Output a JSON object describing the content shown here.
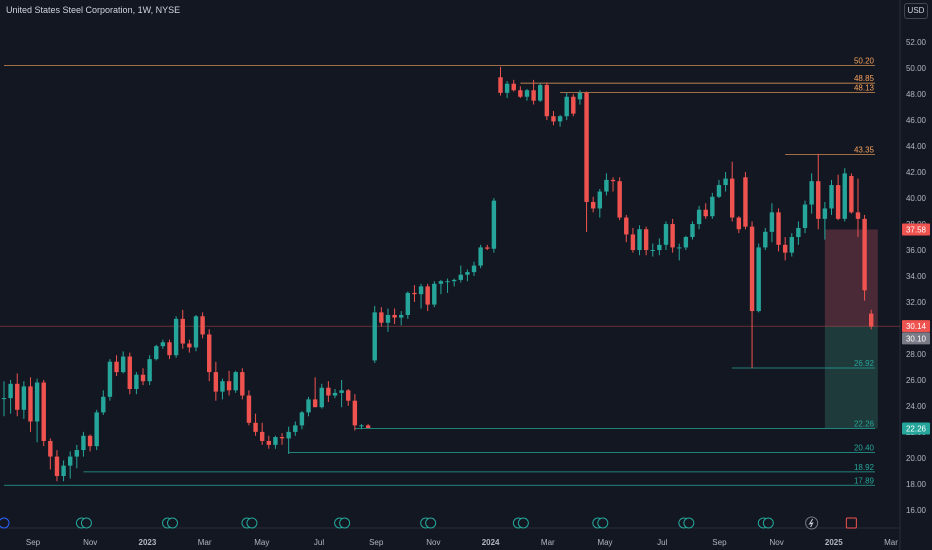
{
  "header": {
    "title": "United States Steel Corporation, 1W, NYSE",
    "currency": "USD"
  },
  "colors": {
    "background": "#131722",
    "bull": "#26a69a",
    "bear": "#ef5350",
    "orange_level": "#f7a35c",
    "green_level": "#26a69a",
    "axis_text": "#b2b5be",
    "stop_zone": "#4a2a36",
    "target_zone": "#1e3a3a"
  },
  "chart_data": {
    "type": "candlestick",
    "title": "United States Steel Corporation, 1W, NYSE",
    "xlabel": "",
    "ylabel": "",
    "ylim": [
      14.6,
      53.4
    ],
    "y_ticks": [
      "52.00",
      "50.00",
      "48.00",
      "46.00",
      "44.00",
      "42.00",
      "40.00",
      "38.00",
      "36.00",
      "34.00",
      "32.00",
      "30.00",
      "28.00",
      "26.00",
      "24.00",
      "22.00",
      "20.00",
      "18.00",
      "16.00"
    ],
    "x_ticks": [
      "Sep",
      "Nov",
      "2023",
      "Mar",
      "May",
      "Jul",
      "Sep",
      "Nov",
      "2024",
      "Mar",
      "May",
      "Jul",
      "Sep",
      "Nov",
      "2025",
      "Mar"
    ],
    "x_range_weeks": [
      0,
      127
    ],
    "candles": [
      [
        24.6,
        25.9,
        23.2,
        24.6
      ],
      [
        24.6,
        26.0,
        23.4,
        25.7
      ],
      [
        25.7,
        26.5,
        23.2,
        23.7
      ],
      [
        23.7,
        25.9,
        23.0,
        25.5
      ],
      [
        25.5,
        26.2,
        22.0,
        22.8
      ],
      [
        22.8,
        26.1,
        21.2,
        25.8
      ],
      [
        25.8,
        26.0,
        20.9,
        21.3
      ],
      [
        21.3,
        21.5,
        19.1,
        20.1
      ],
      [
        20.1,
        20.6,
        18.2,
        18.6
      ],
      [
        18.6,
        19.8,
        18.2,
        19.4
      ],
      [
        19.4,
        20.5,
        18.4,
        20.1
      ],
      [
        20.1,
        21.0,
        19.2,
        20.6
      ],
      [
        20.6,
        22.0,
        20.1,
        21.7
      ],
      [
        21.7,
        21.8,
        20.5,
        20.9
      ],
      [
        20.9,
        23.7,
        20.6,
        23.5
      ],
      [
        23.5,
        25.2,
        23.3,
        24.7
      ],
      [
        24.7,
        27.6,
        24.4,
        27.4
      ],
      [
        27.4,
        27.9,
        26.3,
        26.6
      ],
      [
        26.6,
        28.2,
        26.5,
        27.8
      ],
      [
        27.8,
        28.1,
        24.9,
        25.3
      ],
      [
        25.3,
        26.6,
        24.9,
        26.4
      ],
      [
        26.4,
        26.9,
        25.6,
        25.9
      ],
      [
        25.9,
        27.9,
        25.6,
        27.6
      ],
      [
        27.6,
        28.7,
        27.5,
        28.6
      ],
      [
        28.6,
        29.1,
        28.4,
        28.9
      ],
      [
        28.9,
        29.1,
        27.6,
        27.9
      ],
      [
        27.9,
        30.9,
        27.7,
        30.7
      ],
      [
        30.7,
        31.4,
        28.4,
        28.8
      ],
      [
        28.8,
        29.1,
        28.1,
        28.5
      ],
      [
        28.5,
        31.0,
        28.2,
        30.9
      ],
      [
        30.9,
        31.2,
        29.2,
        29.5
      ],
      [
        29.5,
        29.9,
        25.9,
        26.6
      ],
      [
        26.6,
        27.4,
        24.4,
        25.1
      ],
      [
        25.1,
        26.1,
        24.5,
        25.9
      ],
      [
        25.9,
        26.7,
        24.8,
        25.2
      ],
      [
        25.2,
        26.7,
        25.0,
        26.6
      ],
      [
        26.6,
        26.9,
        24.5,
        24.8
      ],
      [
        24.8,
        25.2,
        22.5,
        22.7
      ],
      [
        22.7,
        23.4,
        21.7,
        22.0
      ],
      [
        22.0,
        22.7,
        21.0,
        21.3
      ],
      [
        21.3,
        21.7,
        20.7,
        21.0
      ],
      [
        21.0,
        21.7,
        20.7,
        21.6
      ],
      [
        21.6,
        21.9,
        21.0,
        21.5
      ],
      [
        21.5,
        22.4,
        20.3,
        22.0
      ],
      [
        22.0,
        22.8,
        21.7,
        22.5
      ],
      [
        22.5,
        23.6,
        22.2,
        23.5
      ],
      [
        23.5,
        24.7,
        23.2,
        24.5
      ],
      [
        24.5,
        26.2,
        23.9,
        23.9
      ],
      [
        23.9,
        25.7,
        23.8,
        25.4
      ],
      [
        25.4,
        25.9,
        24.3,
        24.8
      ],
      [
        24.8,
        25.3,
        24.6,
        25.0
      ],
      [
        25.0,
        26.0,
        23.9,
        25.2
      ],
      [
        25.2,
        25.3,
        24.0,
        24.4
      ],
      [
        24.4,
        24.9,
        22.1,
        22.5
      ],
      [
        22.5,
        22.6,
        22.2,
        22.5
      ],
      [
        22.5,
        22.6,
        22.3,
        22.3
      ],
      [
        27.5,
        31.7,
        27.3,
        31.2
      ],
      [
        31.2,
        31.6,
        30.1,
        30.4
      ],
      [
        30.4,
        31.5,
        29.7,
        31.0
      ],
      [
        31.0,
        31.5,
        30.3,
        30.8
      ],
      [
        30.8,
        31.3,
        30.2,
        31.0
      ],
      [
        31.0,
        32.8,
        30.7,
        32.7
      ],
      [
        32.7,
        33.3,
        32.0,
        32.6
      ],
      [
        32.6,
        33.4,
        31.5,
        33.2
      ],
      [
        33.2,
        33.4,
        31.3,
        31.8
      ],
      [
        31.8,
        33.6,
        31.6,
        33.4
      ],
      [
        33.4,
        33.7,
        32.6,
        33.6
      ],
      [
        33.6,
        33.8,
        32.7,
        33.6
      ],
      [
        33.6,
        33.8,
        33.2,
        33.7
      ],
      [
        33.7,
        34.8,
        33.5,
        34.1
      ],
      [
        34.1,
        34.5,
        33.6,
        34.3
      ],
      [
        34.3,
        35.1,
        34.0,
        34.8
      ],
      [
        34.8,
        36.4,
        34.6,
        36.2
      ],
      [
        36.2,
        36.4,
        36.0,
        36.1
      ],
      [
        36.1,
        40.0,
        35.8,
        39.8
      ],
      [
        49.3,
        50.1,
        47.9,
        48.1
      ],
      [
        48.1,
        49.0,
        47.7,
        48.8
      ],
      [
        48.8,
        49.1,
        48.2,
        48.3
      ],
      [
        48.3,
        48.6,
        47.7,
        47.8
      ],
      [
        47.8,
        48.4,
        47.5,
        48.3
      ],
      [
        48.3,
        49.1,
        47.2,
        47.5
      ],
      [
        47.5,
        48.8,
        47.4,
        48.7
      ],
      [
        48.7,
        48.9,
        46.0,
        46.3
      ],
      [
        46.3,
        46.7,
        45.6,
        45.9
      ],
      [
        45.9,
        46.4,
        45.5,
        46.3
      ],
      [
        46.3,
        48.1,
        46.0,
        47.8
      ],
      [
        47.8,
        48.0,
        46.3,
        46.5
      ],
      [
        47.6,
        48.3,
        47.2,
        48.1
      ],
      [
        48.1,
        48.2,
        37.4,
        39.7
      ],
      [
        39.7,
        40.1,
        38.9,
        39.2
      ],
      [
        39.2,
        40.7,
        38.5,
        40.5
      ],
      [
        40.5,
        41.9,
        40.2,
        41.4
      ],
      [
        41.4,
        41.6,
        40.5,
        41.3
      ],
      [
        41.3,
        41.6,
        38.3,
        38.5
      ],
      [
        38.5,
        38.7,
        36.6,
        37.2
      ],
      [
        37.2,
        37.7,
        35.8,
        36.0
      ],
      [
        36.0,
        37.9,
        35.6,
        37.6
      ],
      [
        37.6,
        37.8,
        35.6,
        36.0
      ],
      [
        36.0,
        36.5,
        35.5,
        36.0
      ],
      [
        36.0,
        36.9,
        35.6,
        36.4
      ],
      [
        36.4,
        38.2,
        36.0,
        38.0
      ],
      [
        38.0,
        38.4,
        35.8,
        36.2
      ],
      [
        36.2,
        36.5,
        35.2,
        36.2
      ],
      [
        36.2,
        37.1,
        36.0,
        37.0
      ],
      [
        37.0,
        38.2,
        36.8,
        38.0
      ],
      [
        38.0,
        39.4,
        37.6,
        39.1
      ],
      [
        39.1,
        39.6,
        38.4,
        38.6
      ],
      [
        38.6,
        40.4,
        38.4,
        40.1
      ],
      [
        40.1,
        41.4,
        40.0,
        41.0
      ],
      [
        41.0,
        42.0,
        40.5,
        41.5
      ],
      [
        41.5,
        42.8,
        38.2,
        38.5
      ],
      [
        38.5,
        38.6,
        37.3,
        37.6
      ],
      [
        41.6,
        42.0,
        37.6,
        37.8
      ],
      [
        37.8,
        38.2,
        26.9,
        31.3
      ],
      [
        31.3,
        36.5,
        31.2,
        36.2
      ],
      [
        36.2,
        37.7,
        36.0,
        37.4
      ],
      [
        37.4,
        39.6,
        36.6,
        38.9
      ],
      [
        38.9,
        39.2,
        35.9,
        36.4
      ],
      [
        36.4,
        37.0,
        35.2,
        35.8
      ],
      [
        35.8,
        37.3,
        35.5,
        37.0
      ],
      [
        37.0,
        38.2,
        36.4,
        37.7
      ],
      [
        37.7,
        39.8,
        37.3,
        39.5
      ],
      [
        39.5,
        41.9,
        38.8,
        41.3
      ],
      [
        41.3,
        43.4,
        37.6,
        38.4
      ],
      [
        38.4,
        39.7,
        36.8,
        39.2
      ],
      [
        39.2,
        41.4,
        38.7,
        41.0
      ],
      [
        41.0,
        41.8,
        38.3,
        38.4
      ],
      [
        38.4,
        42.3,
        38.2,
        41.9
      ],
      [
        41.7,
        41.9,
        38.8,
        38.9
      ],
      [
        38.9,
        41.5,
        37.0,
        38.4
      ],
      [
        38.4,
        38.7,
        32.1,
        32.9
      ],
      [
        31.1,
        31.4,
        29.9,
        30.1
      ]
    ],
    "levels": [
      {
        "value": 50.2,
        "label": "50.20",
        "color": "orange",
        "start_week": 0
      },
      {
        "value": 48.85,
        "label": "48.85",
        "color": "orange",
        "start_week": 78
      },
      {
        "value": 48.13,
        "label": "48.13",
        "color": "orange",
        "start_week": 84
      },
      {
        "value": 43.35,
        "label": "43.35",
        "color": "orange",
        "start_week": 118
      },
      {
        "value": 26.92,
        "label": "26.92",
        "color": "green",
        "start_week": 110
      },
      {
        "value": 22.26,
        "label": "22.26",
        "color": "green",
        "start_week": 53
      },
      {
        "value": 20.4,
        "label": "20.40",
        "color": "green",
        "start_week": 43
      },
      {
        "value": 18.92,
        "label": "18.92",
        "color": "green",
        "start_week": 12
      },
      {
        "value": 17.89,
        "label": "17.89",
        "color": "green",
        "start_week": 0
      }
    ],
    "position": {
      "entry": 30.14,
      "stop": 37.58,
      "target": 22.26,
      "start_week": 124,
      "end_week": 132
    },
    "price_labels": [
      {
        "label": "37.58",
        "value": 37.58,
        "color": "#ef5350"
      },
      {
        "label": "30.14",
        "value": 30.14,
        "color": "#ef5350"
      },
      {
        "label": "30.10",
        "value": 29.2,
        "color": "#787b86"
      },
      {
        "label": "22.26",
        "value": 22.26,
        "color": "#26a69a"
      }
    ],
    "events": [
      {
        "week": 0,
        "icon": "D"
      },
      {
        "week": 12,
        "icon": "ED"
      },
      {
        "week": 25,
        "icon": "ED"
      },
      {
        "week": 37,
        "icon": "ED"
      },
      {
        "week": 51,
        "icon": "ED"
      },
      {
        "week": 64,
        "icon": "ED"
      },
      {
        "week": 78,
        "icon": "ED"
      },
      {
        "week": 90,
        "icon": "ED"
      },
      {
        "week": 103,
        "icon": "ED"
      },
      {
        "week": 115,
        "icon": "ED"
      },
      {
        "week": 122,
        "icon": "split"
      },
      {
        "week": 128,
        "icon": "E"
      }
    ]
  }
}
